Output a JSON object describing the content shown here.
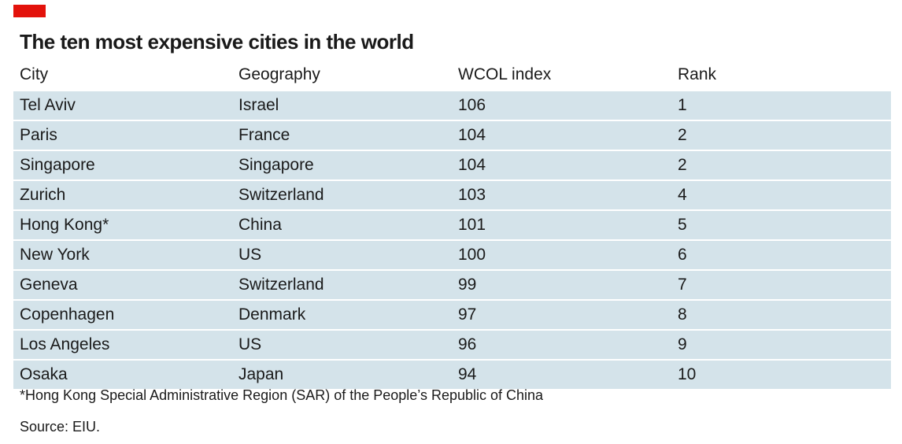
{
  "title": "The ten most expensive cities in the world",
  "chart_data": {
    "type": "table",
    "title": "The ten most expensive cities in the world",
    "columns": [
      "City",
      "Geography",
      "WCOL index",
      "Rank"
    ],
    "rows": [
      [
        "Tel Aviv",
        "Israel",
        "106",
        "1"
      ],
      [
        "Paris",
        "France",
        "104",
        "2"
      ],
      [
        "Singapore",
        "Singapore",
        "104",
        "2"
      ],
      [
        "Zurich",
        "Switzerland",
        "103",
        "4"
      ],
      [
        "Hong Kong*",
        "China",
        "101",
        "5"
      ],
      [
        "New York",
        "US",
        "100",
        "6"
      ],
      [
        "Geneva",
        "Switzerland",
        "99",
        "7"
      ],
      [
        "Copenhagen",
        "Denmark",
        "97",
        "8"
      ],
      [
        "Los Angeles",
        "US",
        "96",
        "9"
      ],
      [
        "Osaka",
        "Japan",
        "94",
        "10"
      ]
    ]
  },
  "footnote": "*Hong Kong Special Administrative Region (SAR) of the People’s Republic of China",
  "source": "Source: EIU.",
  "colors": {
    "accent": "#e3120b",
    "row_fill": "#d4e3ea"
  }
}
